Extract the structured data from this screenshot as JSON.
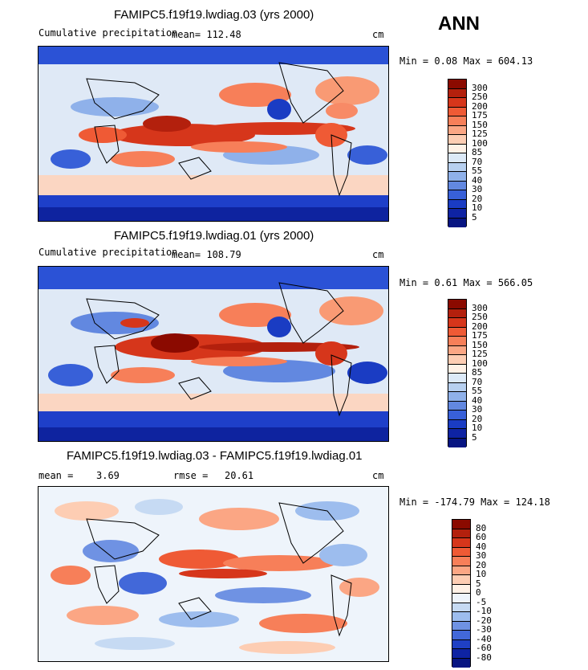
{
  "season": "ANN",
  "panels": [
    {
      "title": "FAMIPC5.f19f19.lwdiag.03 (yrs 2000)",
      "left_label": "Cumulative precipitation",
      "stats": "mean= 112.48",
      "units": "cm",
      "minmax": "Min =   0.08 Max = 604.13",
      "levels": [
        "300",
        "250",
        "200",
        "175",
        "150",
        "125",
        "100",
        "85",
        "70",
        "55",
        "40",
        "30",
        "20",
        "10",
        "5"
      ],
      "colors": [
        "#8b0a00",
        "#b3200d",
        "#d6361b",
        "#ef5a35",
        "#f77f59",
        "#fba684",
        "#fdcdb3",
        "#fff1e6",
        "#dce9f7",
        "#b7d0f0",
        "#8fb1ea",
        "#6288e0",
        "#3860d8",
        "#1a3cc3",
        "#0e23a3",
        "#071582"
      ]
    },
    {
      "title": "FAMIPC5.f19f19.lwdiag.01 (yrs 2000)",
      "left_label": "Cumulative precipitation",
      "stats": "mean= 108.79",
      "units": "cm",
      "minmax": "Min =   0.61 Max = 566.05",
      "levels": [
        "300",
        "250",
        "200",
        "175",
        "150",
        "125",
        "100",
        "85",
        "70",
        "55",
        "40",
        "30",
        "20",
        "10",
        "5"
      ],
      "colors": [
        "#8b0a00",
        "#b3200d",
        "#d6361b",
        "#ef5a35",
        "#f77f59",
        "#fba684",
        "#fdcdb3",
        "#fff1e6",
        "#dce9f7",
        "#b7d0f0",
        "#8fb1ea",
        "#6288e0",
        "#3860d8",
        "#1a3cc3",
        "#0e23a3",
        "#071582"
      ]
    },
    {
      "title": "FAMIPC5.f19f19.lwdiag.03 - FAMIPC5.f19f19.lwdiag.01",
      "mean_label": "mean =",
      "mean_value": "3.69",
      "rmse_label": "rmse =",
      "rmse_value": "20.61",
      "units": "cm",
      "minmax": "Min = -174.79 Max = 124.18",
      "levels": [
        "80",
        "60",
        "40",
        "30",
        "20",
        "10",
        "5",
        "0",
        "-5",
        "-10",
        "-20",
        "-30",
        "-40",
        "-60",
        "-80"
      ],
      "colors": [
        "#8b0a00",
        "#b3200d",
        "#d6361b",
        "#ef5a35",
        "#f77f59",
        "#fba684",
        "#fdcdb3",
        "#fff1e6",
        "#eef4fb",
        "#c6daf3",
        "#9dbdee",
        "#6f92e3",
        "#4268d9",
        "#1f40c4",
        "#0e23a3",
        "#071582"
      ]
    }
  ],
  "chart_data": [
    {
      "type": "heatmap",
      "title": "FAMIPC5.f19f19.lwdiag.03 (yrs 2000)",
      "variable": "Cumulative precipitation",
      "units": "cm",
      "mean": 112.48,
      "min": 0.08,
      "max": 604.13,
      "contour_levels": [
        5,
        10,
        20,
        30,
        40,
        55,
        70,
        85,
        100,
        125,
        150,
        175,
        200,
        250,
        300
      ]
    },
    {
      "type": "heatmap",
      "title": "FAMIPC5.f19f19.lwdiag.01 (yrs 2000)",
      "variable": "Cumulative precipitation",
      "units": "cm",
      "mean": 108.79,
      "min": 0.61,
      "max": 566.05,
      "contour_levels": [
        5,
        10,
        20,
        30,
        40,
        55,
        70,
        85,
        100,
        125,
        150,
        175,
        200,
        250,
        300
      ]
    },
    {
      "type": "heatmap",
      "title": "FAMIPC5.f19f19.lwdiag.03 - FAMIPC5.f19f19.lwdiag.01",
      "units": "cm",
      "mean": 3.69,
      "rmse": 20.61,
      "min": -174.79,
      "max": 124.18,
      "contour_levels": [
        -80,
        -60,
        -40,
        -30,
        -20,
        -10,
        -5,
        0,
        5,
        10,
        20,
        30,
        40,
        60,
        80
      ]
    }
  ]
}
